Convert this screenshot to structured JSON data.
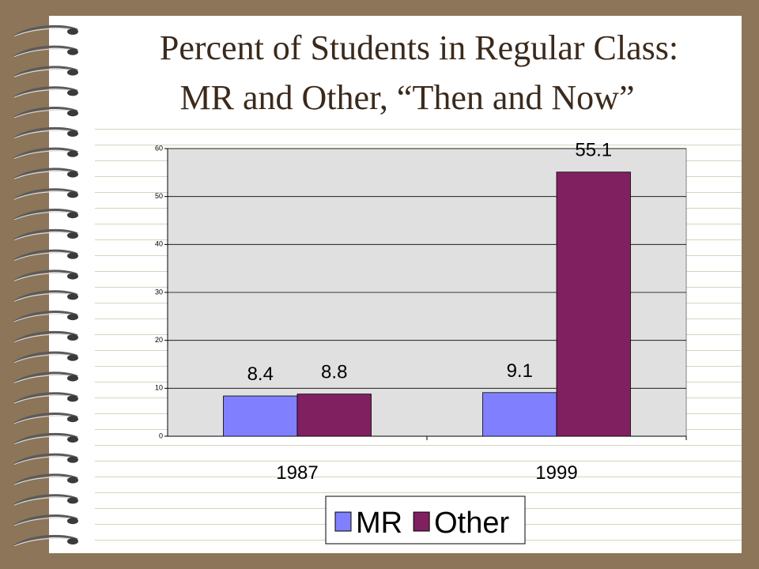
{
  "chart_data": {
    "type": "bar",
    "title": [
      "Percent of Students in Regular Class:",
      "MR and Other, “Then and Now”"
    ],
    "categories": [
      "1987",
      "1999"
    ],
    "series": [
      {
        "name": "MR",
        "color": "#8080ff",
        "values": [
          8.4,
          9.1
        ]
      },
      {
        "name": "Other",
        "color": "#802060",
        "values": [
          8.8,
          55.1
        ]
      }
    ],
    "ylim": [
      0,
      60
    ],
    "yticks": [
      0,
      10,
      20,
      30,
      40,
      50,
      60
    ],
    "grid": true
  }
}
